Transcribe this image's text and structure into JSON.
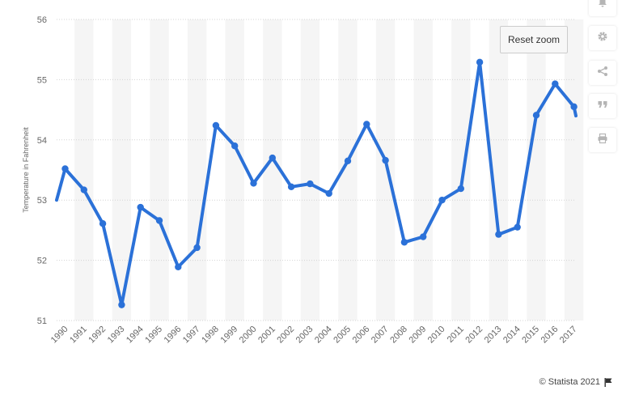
{
  "chart_data": {
    "type": "line",
    "title": "",
    "xlabel": "",
    "ylabel": "Temperature in Fahrenheit",
    "ylim": [
      51,
      56
    ],
    "yticks": [
      51,
      52,
      53,
      54,
      55,
      56
    ],
    "grid": true,
    "categories": [
      "1990",
      "1991",
      "1992",
      "1993",
      "1994",
      "1995",
      "1996",
      "1997",
      "1998",
      "1999",
      "2000",
      "2001",
      "2002",
      "2003",
      "2004",
      "2005",
      "2006",
      "2007",
      "2008",
      "2009",
      "2010",
      "2011",
      "2012",
      "2013",
      "2014",
      "2015",
      "2016",
      "2017"
    ],
    "series": [
      {
        "name": "Temperature",
        "color": "#2b71d8",
        "values": [
          53.52,
          53.17,
          52.61,
          51.26,
          52.88,
          52.66,
          51.89,
          52.21,
          54.24,
          53.9,
          53.28,
          53.7,
          53.22,
          53.27,
          53.11,
          53.65,
          54.26,
          53.66,
          52.3,
          52.39,
          53.0,
          53.19,
          55.29,
          52.43,
          52.55,
          54.41,
          54.93,
          54.55
        ]
      }
    ],
    "edge_start_value": 53.0,
    "edge_end_value": 54.4
  },
  "toolbar": {
    "reset_zoom_label": "Reset zoom",
    "buttons": [
      "bell-icon",
      "gear-icon",
      "share-icon",
      "quote-icon",
      "print-icon"
    ]
  },
  "footer": {
    "credit": "© Statista 2021"
  },
  "colors": {
    "line": "#2b71d8",
    "band": "#f5f5f5",
    "grid": "#d4d4d4",
    "axis_text": "#666666"
  }
}
